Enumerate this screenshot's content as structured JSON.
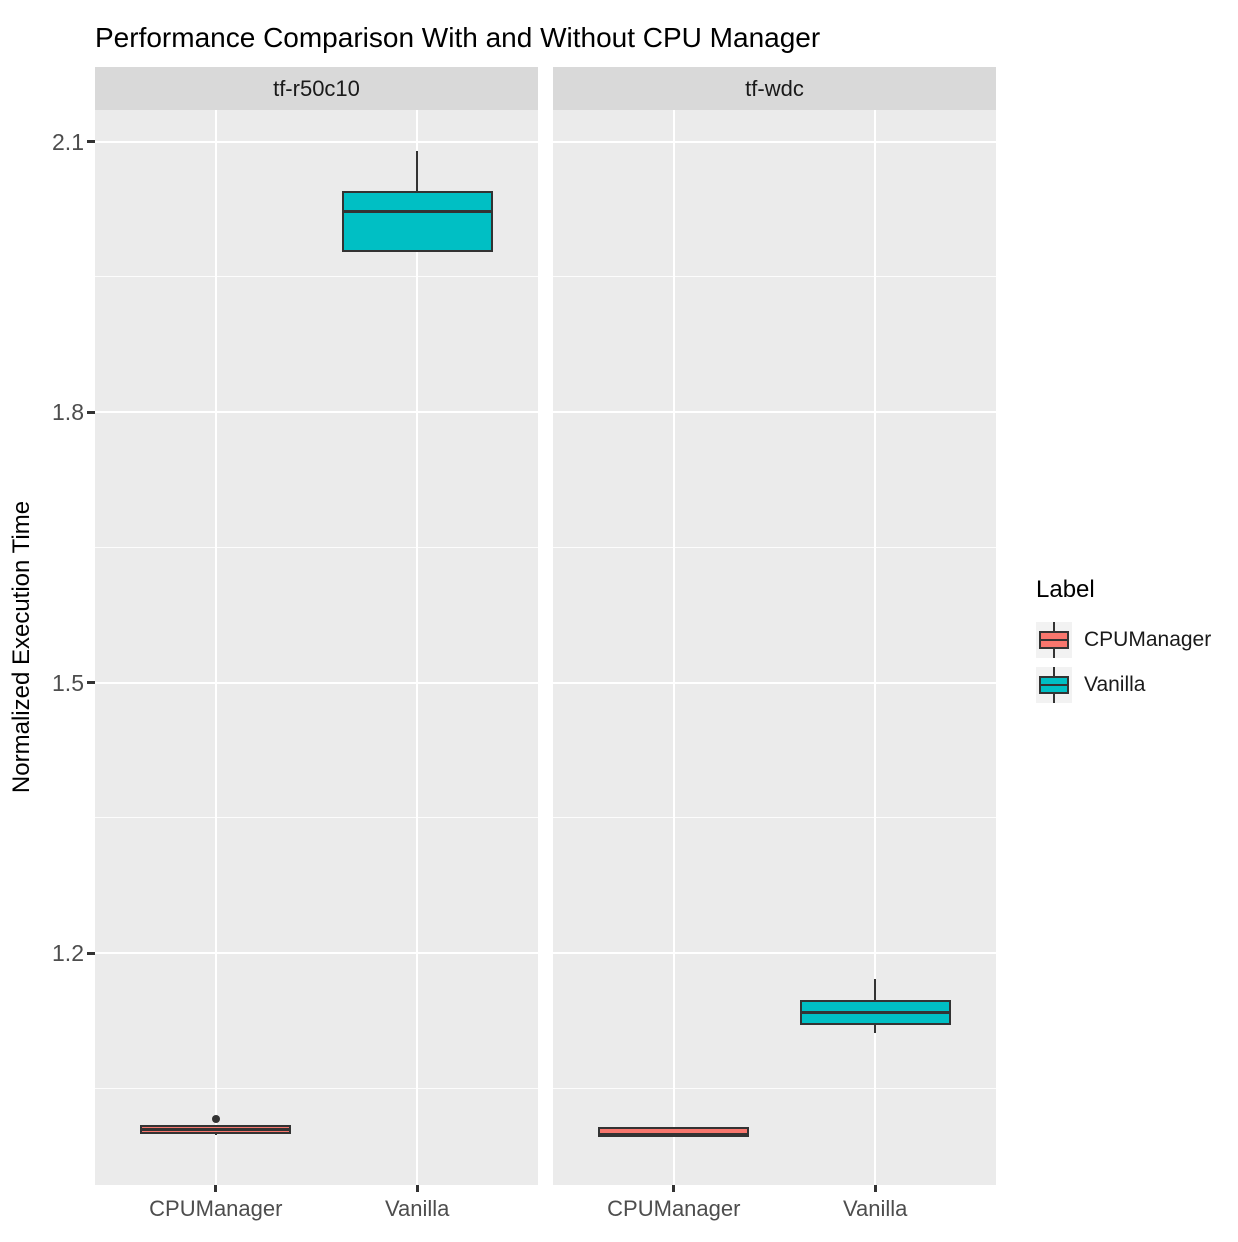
{
  "chart_data": {
    "type": "boxplot",
    "title": "Performance Comparison With and Without CPU Manager",
    "ylabel": "Normalized Execution Time",
    "xlabel": "",
    "y_ticks": [
      2.1,
      1.8,
      1.5,
      1.2
    ],
    "y_minor_ticks": [
      1.95,
      1.65,
      1.35,
      1.05
    ],
    "ylim": [
      0.943,
      2.135
    ],
    "grid": "on",
    "categories": [
      "CPUManager",
      "Vanilla"
    ],
    "facets": [
      {
        "label": "tf-r50c10",
        "boxes": [
          {
            "group": "CPUManager",
            "color": "#F8766D",
            "whisker_low": 0.998,
            "q1": 1.0,
            "median": 1.004,
            "q3": 1.009,
            "whisker_high": 1.009,
            "outliers": [
              1.016
            ]
          },
          {
            "group": "Vanilla",
            "color": "#00BFC4",
            "whisker_low": 1.977,
            "q1": 1.977,
            "median": 2.022,
            "q3": 2.045,
            "whisker_high": 2.09,
            "outliers": []
          }
        ]
      },
      {
        "label": "tf-wdc",
        "boxes": [
          {
            "group": "CPUManager",
            "color": "#F8766D",
            "whisker_low": 0.996,
            "q1": 0.996,
            "median": 0.999,
            "q3": 1.007,
            "whisker_high": 1.007,
            "outliers": []
          },
          {
            "group": "Vanilla",
            "color": "#00BFC4",
            "whisker_low": 1.111,
            "q1": 1.12,
            "median": 1.134,
            "q3": 1.148,
            "whisker_high": 1.171,
            "outliers": []
          }
        ]
      }
    ],
    "legend": {
      "title": "Label",
      "position": "right",
      "entries": [
        {
          "label": "CPUManager",
          "color": "#F8766D"
        },
        {
          "label": "Vanilla",
          "color": "#00BFC4"
        }
      ]
    },
    "colors": {
      "panel_background": "#EBEBEB",
      "strip_background": "#D9D9D9",
      "gridline": "#FFFFFF",
      "box_border": "#333333",
      "tick_text": "#4D4D4D"
    }
  }
}
